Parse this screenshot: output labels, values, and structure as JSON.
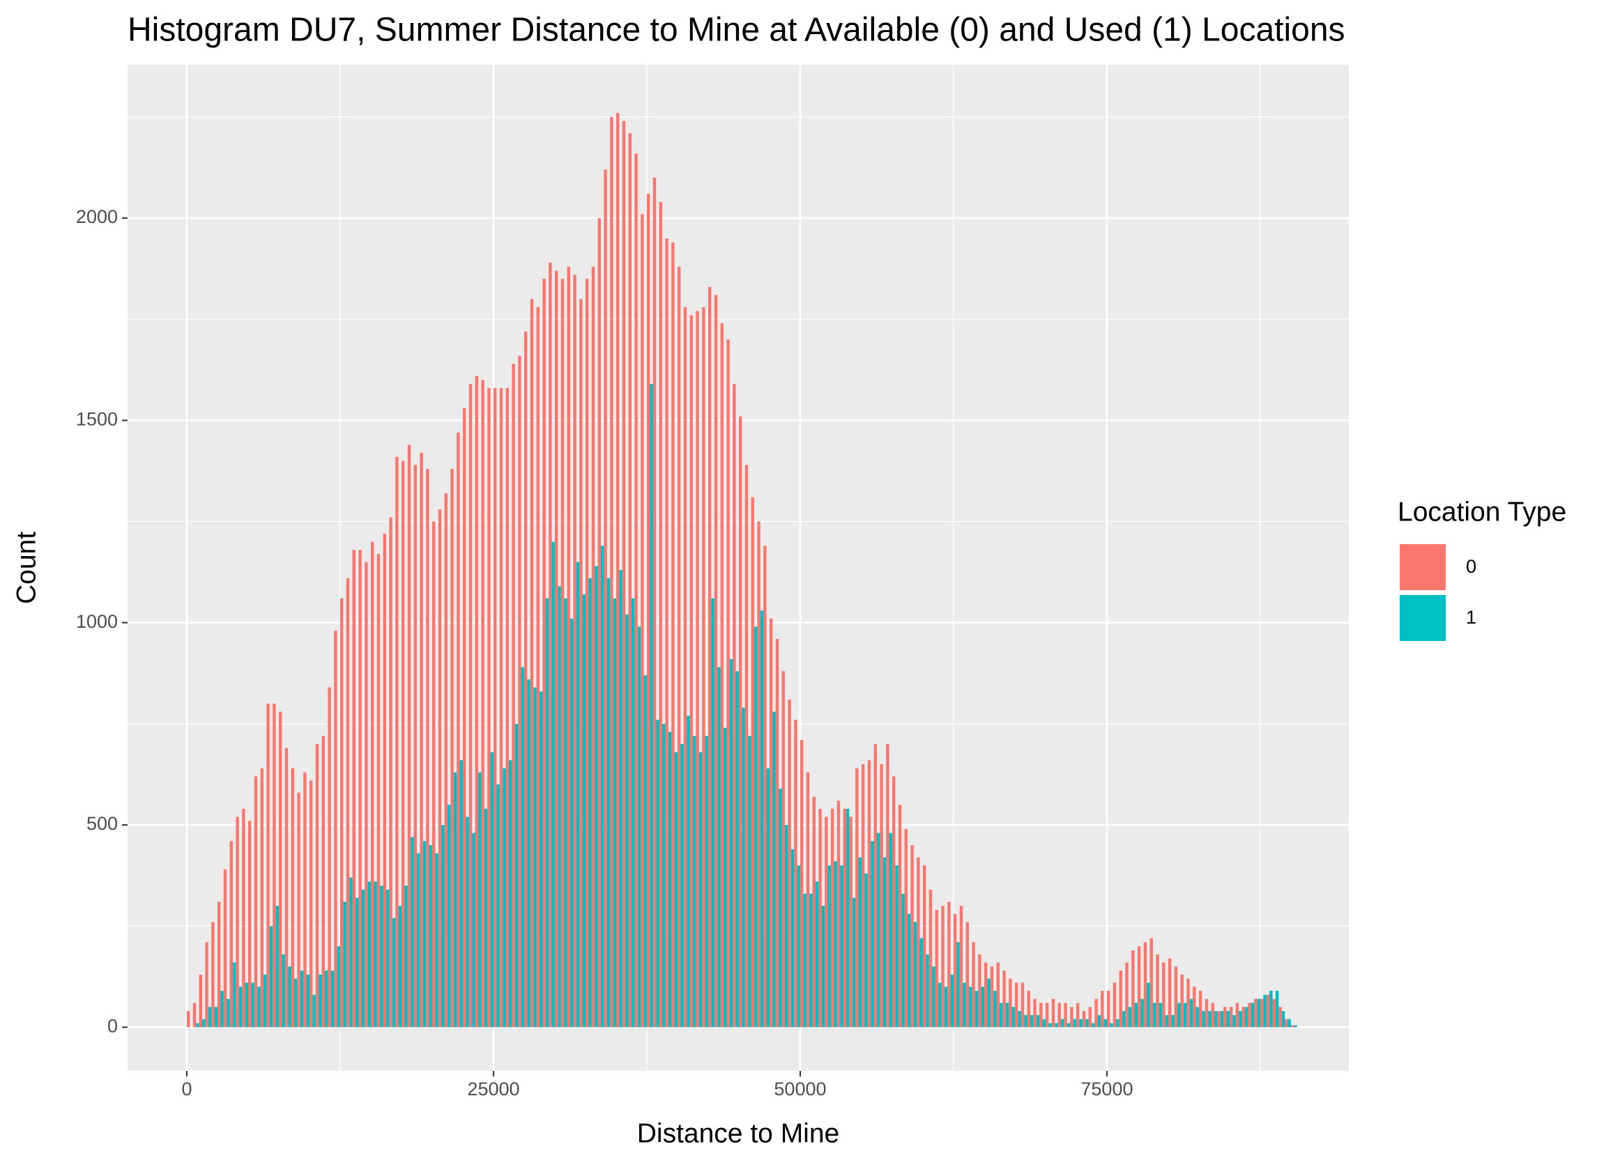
{
  "chart_data": {
    "type": "histogram",
    "title": "Histogram DU7, Summer Distance to Mine at Available (0) and Used (1) Locations",
    "x_label": "Distance to Mine",
    "y_label": "Count",
    "legend_title": "Location Type",
    "legend_position": "right",
    "grid": true,
    "bins": [
      0,
      500,
      1000,
      1500,
      2000,
      2500,
      3000,
      3500,
      4000,
      4500,
      5000,
      5500,
      6000,
      6500,
      7000,
      7500,
      8000,
      8500,
      9000,
      9500,
      10000,
      10500,
      11000,
      11500,
      12000,
      12500,
      13000,
      13500,
      14000,
      14500,
      15000,
      15500,
      16000,
      16500,
      17000,
      17500,
      18000,
      18500,
      19000,
      19500,
      20000,
      20500,
      21000,
      21500,
      22000,
      22500,
      23000,
      23500,
      24000,
      24500,
      25000,
      25500,
      26000,
      26500,
      27000,
      27500,
      28000,
      28500,
      29000,
      29500,
      30000,
      30500,
      31000,
      31500,
      32000,
      32500,
      33000,
      33500,
      34000,
      34500,
      35000,
      35500,
      36000,
      36500,
      37000,
      37500,
      38000,
      38500,
      39000,
      39500,
      40000,
      40500,
      41000,
      41500,
      42000,
      42500,
      43000,
      43500,
      44000,
      44500,
      45000,
      45500,
      46000,
      46500,
      47000,
      47500,
      48000,
      48500,
      49000,
      49500,
      50000,
      50500,
      51000,
      51500,
      52000,
      52500,
      53000,
      53500,
      54000,
      54500,
      55000,
      55500,
      56000,
      56500,
      57000,
      57500,
      58000,
      58500,
      59000,
      59500,
      60000,
      60500,
      61000,
      61500,
      62000,
      62500,
      63000,
      63500,
      64000,
      64500,
      65000,
      65500,
      66000,
      66500,
      67000,
      67500,
      68000,
      68500,
      69000,
      69500,
      70000,
      70500,
      71000,
      71500,
      72000,
      72500,
      73000,
      73500,
      74000,
      74500,
      75000,
      75500,
      76000,
      76500,
      77000,
      77500,
      78000,
      78500,
      79000,
      79500,
      80000,
      80500,
      81000,
      81500,
      82000,
      82500,
      83000,
      83500,
      84000,
      84500,
      85000,
      85500,
      86000,
      86500,
      87000,
      87500,
      88000,
      88500,
      89000,
      89500,
      90000,
      90500
    ],
    "series": [
      {
        "name": "0",
        "color": "#f8766d",
        "values": [
          40,
          60,
          130,
          210,
          260,
          310,
          390,
          460,
          520,
          540,
          510,
          620,
          640,
          800,
          800,
          780,
          690,
          640,
          580,
          630,
          610,
          700,
          720,
          840,
          980,
          1060,
          1110,
          1180,
          1180,
          1150,
          1200,
          1170,
          1220,
          1260,
          1410,
          1400,
          1440,
          1390,
          1420,
          1380,
          1250,
          1280,
          1320,
          1380,
          1470,
          1530,
          1590,
          1610,
          1600,
          1580,
          1580,
          1580,
          1580,
          1640,
          1660,
          1720,
          1800,
          1780,
          1850,
          1890,
          1870,
          1850,
          1880,
          1860,
          1800,
          1850,
          1880,
          2000,
          2120,
          2250,
          2260,
          2240,
          2210,
          2160,
          2010,
          2060,
          2100,
          2040,
          1950,
          1940,
          1880,
          1780,
          1760,
          1770,
          1780,
          1830,
          1810,
          1740,
          1700,
          1590,
          1510,
          1390,
          1310,
          1250,
          1190,
          1010,
          960,
          880,
          810,
          760,
          710,
          630,
          570,
          540,
          520,
          540,
          560,
          540,
          520,
          640,
          650,
          660,
          700,
          650,
          700,
          620,
          550,
          490,
          450,
          420,
          400,
          340,
          290,
          300,
          310,
          280,
          300,
          260,
          210,
          180,
          160,
          150,
          160,
          140,
          120,
          110,
          110,
          90,
          70,
          60,
          60,
          70,
          60,
          60,
          50,
          60,
          40,
          50,
          70,
          90,
          90,
          110,
          140,
          160,
          190,
          200,
          210,
          220,
          180,
          160,
          170,
          150,
          130,
          120,
          100,
          90,
          70,
          60,
          40,
          50,
          50,
          60,
          50,
          60,
          70,
          70,
          80,
          70,
          50,
          20,
          5
        ]
      },
      {
        "name": "1",
        "color": "#00bfc4",
        "values": [
          0,
          10,
          20,
          50,
          50,
          90,
          70,
          160,
          100,
          110,
          110,
          100,
          130,
          250,
          300,
          180,
          150,
          120,
          140,
          130,
          80,
          130,
          140,
          140,
          200,
          310,
          370,
          320,
          340,
          360,
          360,
          350,
          340,
          270,
          300,
          350,
          470,
          430,
          460,
          450,
          430,
          500,
          550,
          630,
          660,
          520,
          480,
          630,
          540,
          680,
          600,
          640,
          660,
          750,
          890,
          860,
          840,
          830,
          1060,
          1200,
          1090,
          1060,
          1010,
          1150,
          1070,
          1110,
          1140,
          1190,
          1110,
          1060,
          1130,
          1020,
          1060,
          990,
          870,
          1590,
          760,
          750,
          730,
          680,
          700,
          770,
          720,
          680,
          720,
          1060,
          890,
          740,
          910,
          880,
          790,
          720,
          990,
          1030,
          640,
          780,
          590,
          500,
          440,
          400,
          330,
          330,
          360,
          300,
          400,
          410,
          400,
          540,
          320,
          420,
          380,
          460,
          480,
          420,
          480,
          400,
          330,
          280,
          260,
          220,
          180,
          150,
          110,
          100,
          130,
          210,
          110,
          100,
          90,
          100,
          120,
          90,
          60,
          60,
          50,
          40,
          30,
          30,
          30,
          20,
          10,
          10,
          20,
          10,
          20,
          20,
          20,
          10,
          30,
          20,
          10,
          20,
          40,
          50,
          60,
          70,
          110,
          60,
          60,
          30,
          30,
          60,
          60,
          70,
          50,
          40,
          40,
          40,
          40,
          40,
          30,
          40,
          50,
          60,
          70,
          80,
          90,
          90,
          40,
          20,
          5
        ]
      }
    ],
    "xlim": [
      -4830,
      94720
    ],
    "xticks": [
      0,
      25000,
      50000,
      75000
    ],
    "xticks_minor": [
      12500,
      37500,
      62500,
      87500
    ],
    "ylim": [
      -108,
      2379
    ],
    "yticks": [
      0,
      500,
      1000,
      1500,
      2000
    ],
    "yticks_minor": [
      250,
      750,
      1250,
      1750,
      2250
    ]
  }
}
